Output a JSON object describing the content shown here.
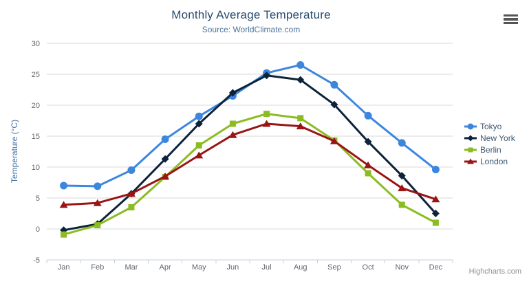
{
  "header": {
    "title": "Monthly Average Temperature",
    "subtitle": "Source: WorldClimate.com"
  },
  "credit": "Highcharts.com",
  "colors": {
    "title": "#274b6d",
    "subtitle": "#4d759e",
    "axis_labels": "#666666",
    "y_axis_title": "#4572a7",
    "grid": "#d8d8d8",
    "axis_line": "#c0d0e0",
    "legend_text": "#3e576f",
    "credit_text": "#909090",
    "menu_icon": "#555555",
    "background": "#ffffff"
  },
  "chart_data": {
    "type": "line",
    "title": "Monthly Average Temperature",
    "subtitle": "Source: WorldClimate.com",
    "xlabel": "",
    "ylabel": "Temperature (°C)",
    "categories": [
      "Jan",
      "Feb",
      "Mar",
      "Apr",
      "May",
      "Jun",
      "Jul",
      "Aug",
      "Sep",
      "Oct",
      "Nov",
      "Dec"
    ],
    "yticks": [
      -5,
      0,
      5,
      10,
      15,
      20,
      25,
      30
    ],
    "ylim": [
      -5,
      30
    ],
    "grid": true,
    "legend_position": "right",
    "series": [
      {
        "name": "Tokyo",
        "color": "#3c87dd",
        "marker": "circle",
        "values": [
          7.0,
          6.9,
          9.5,
          14.5,
          18.2,
          21.5,
          25.2,
          26.5,
          23.3,
          18.3,
          13.9,
          9.6
        ]
      },
      {
        "name": "New York",
        "color": "#0d233a",
        "marker": "diamond",
        "values": [
          -0.2,
          0.8,
          5.7,
          11.3,
          17.0,
          22.0,
          24.8,
          24.1,
          20.1,
          14.1,
          8.6,
          2.5
        ]
      },
      {
        "name": "Berlin",
        "color": "#8bbc21",
        "marker": "square",
        "values": [
          -0.9,
          0.6,
          3.5,
          8.4,
          13.5,
          17.0,
          18.6,
          17.9,
          14.3,
          9.0,
          3.9,
          1.0
        ]
      },
      {
        "name": "London",
        "color": "#9a1414",
        "marker": "triangle",
        "values": [
          3.9,
          4.2,
          5.7,
          8.5,
          11.9,
          15.2,
          17.0,
          16.6,
          14.2,
          10.3,
          6.6,
          4.8
        ]
      }
    ]
  }
}
